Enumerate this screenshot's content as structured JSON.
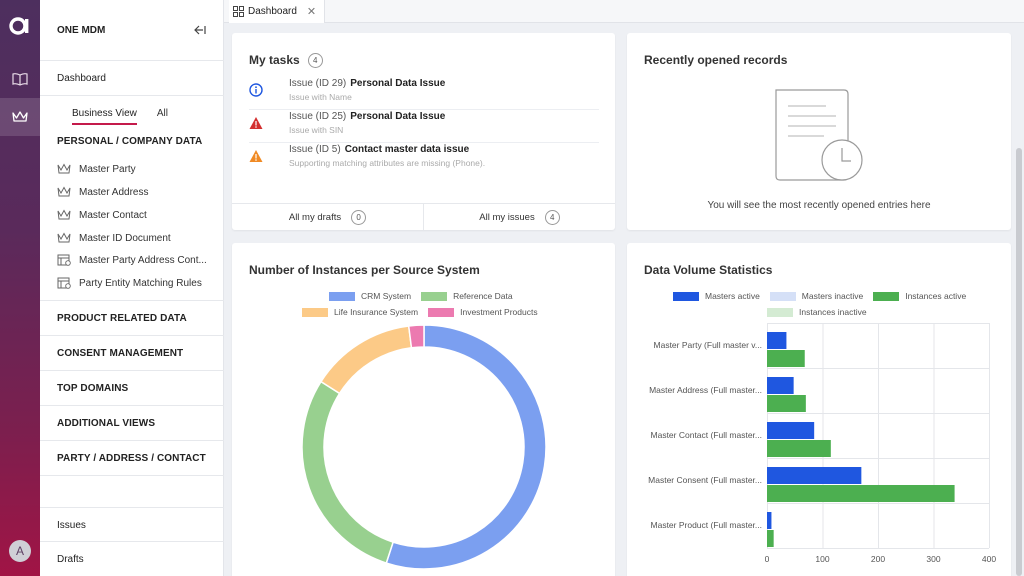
{
  "app": {
    "title": "ONE MDM",
    "avatar_initial": "A",
    "accent_color": "#c41a4b"
  },
  "sidebar": {
    "dashboard_label": "Dashboard",
    "view_tabs": [
      {
        "label": "Business View",
        "active": true
      },
      {
        "label": "All",
        "active": false
      }
    ],
    "personal_section": "PERSONAL / COMPANY DATA",
    "items": [
      {
        "label": "Master Party",
        "icon": "crown-icon"
      },
      {
        "label": "Master Address",
        "icon": "crown-icon"
      },
      {
        "label": "Master Contact",
        "icon": "crown-icon"
      },
      {
        "label": "Master ID Document",
        "icon": "crown-icon"
      },
      {
        "label": "Master Party Address Cont...",
        "icon": "table-icon"
      },
      {
        "label": "Party Entity Matching Rules",
        "icon": "table-icon"
      }
    ],
    "sections": [
      "PRODUCT RELATED DATA",
      "CONSENT MANAGEMENT",
      "TOP DOMAINS",
      "ADDITIONAL VIEWS",
      "PARTY / ADDRESS / CONTACT"
    ],
    "bottom": [
      "Issues",
      "Drafts"
    ]
  },
  "topbar": {
    "tab_label": "Dashboard"
  },
  "tasks": {
    "title": "My tasks",
    "count": "4",
    "items": [
      {
        "id": "Issue (ID 29)",
        "name": "Personal Data Issue",
        "desc": "Issue with Name",
        "icon": "info-icon"
      },
      {
        "id": "Issue (ID 25)",
        "name": "Personal Data Issue",
        "desc": "Issue with SIN",
        "icon": "error-icon"
      },
      {
        "id": "Issue (ID 5)",
        "name": "Contact master data issue",
        "desc": "Supporting matching attributes are missing (Phone).",
        "icon": "warning-icon"
      }
    ],
    "drafts_label": "All my drafts",
    "drafts_count": "0",
    "issues_label": "All my issues",
    "issues_count": "4"
  },
  "recent": {
    "title": "Recently opened records",
    "empty_text": "You will see the most recently opened entries here"
  },
  "donut": {
    "title": "Number of Instances per Source System",
    "chart_data": {
      "type": "pie",
      "title": "Number of Instances per Source System",
      "categories": [
        "CRM System",
        "Reference Data",
        "Life Insurance System",
        "Investment Products"
      ],
      "values": [
        55,
        29,
        14,
        2
      ],
      "colors": [
        "#7b9ff0",
        "#98d08f",
        "#fcca87",
        "#ec7ab0"
      ],
      "legend": "top",
      "donut": true
    }
  },
  "volume": {
    "title": "Data Volume Statistics",
    "chart_data": {
      "type": "bar",
      "orientation": "horizontal",
      "title": "Data Volume Statistics",
      "categories": [
        "Master Party (Full master v...",
        "Master Address (Full master...",
        "Master Contact (Full master...",
        "Master Consent (Full master...",
        "Master Product (Full master..."
      ],
      "series": [
        {
          "name": "Masters active",
          "color": "#1f57e0",
          "values": [
            35,
            48,
            85,
            170,
            8
          ]
        },
        {
          "name": "Masters inactive",
          "color": "#d5e0f7",
          "values": [
            0,
            0,
            0,
            0,
            0
          ]
        },
        {
          "name": "Instances active",
          "color": "#4caf50",
          "values": [
            68,
            70,
            115,
            338,
            12
          ]
        },
        {
          "name": "Instances inactive",
          "color": "#d4ebd3",
          "values": [
            0,
            0,
            0,
            0,
            0
          ]
        }
      ],
      "xlim": [
        0,
        400
      ],
      "ticks": [
        "0",
        "100",
        "200",
        "300",
        "400"
      ],
      "grid": true,
      "legend": "top"
    }
  }
}
